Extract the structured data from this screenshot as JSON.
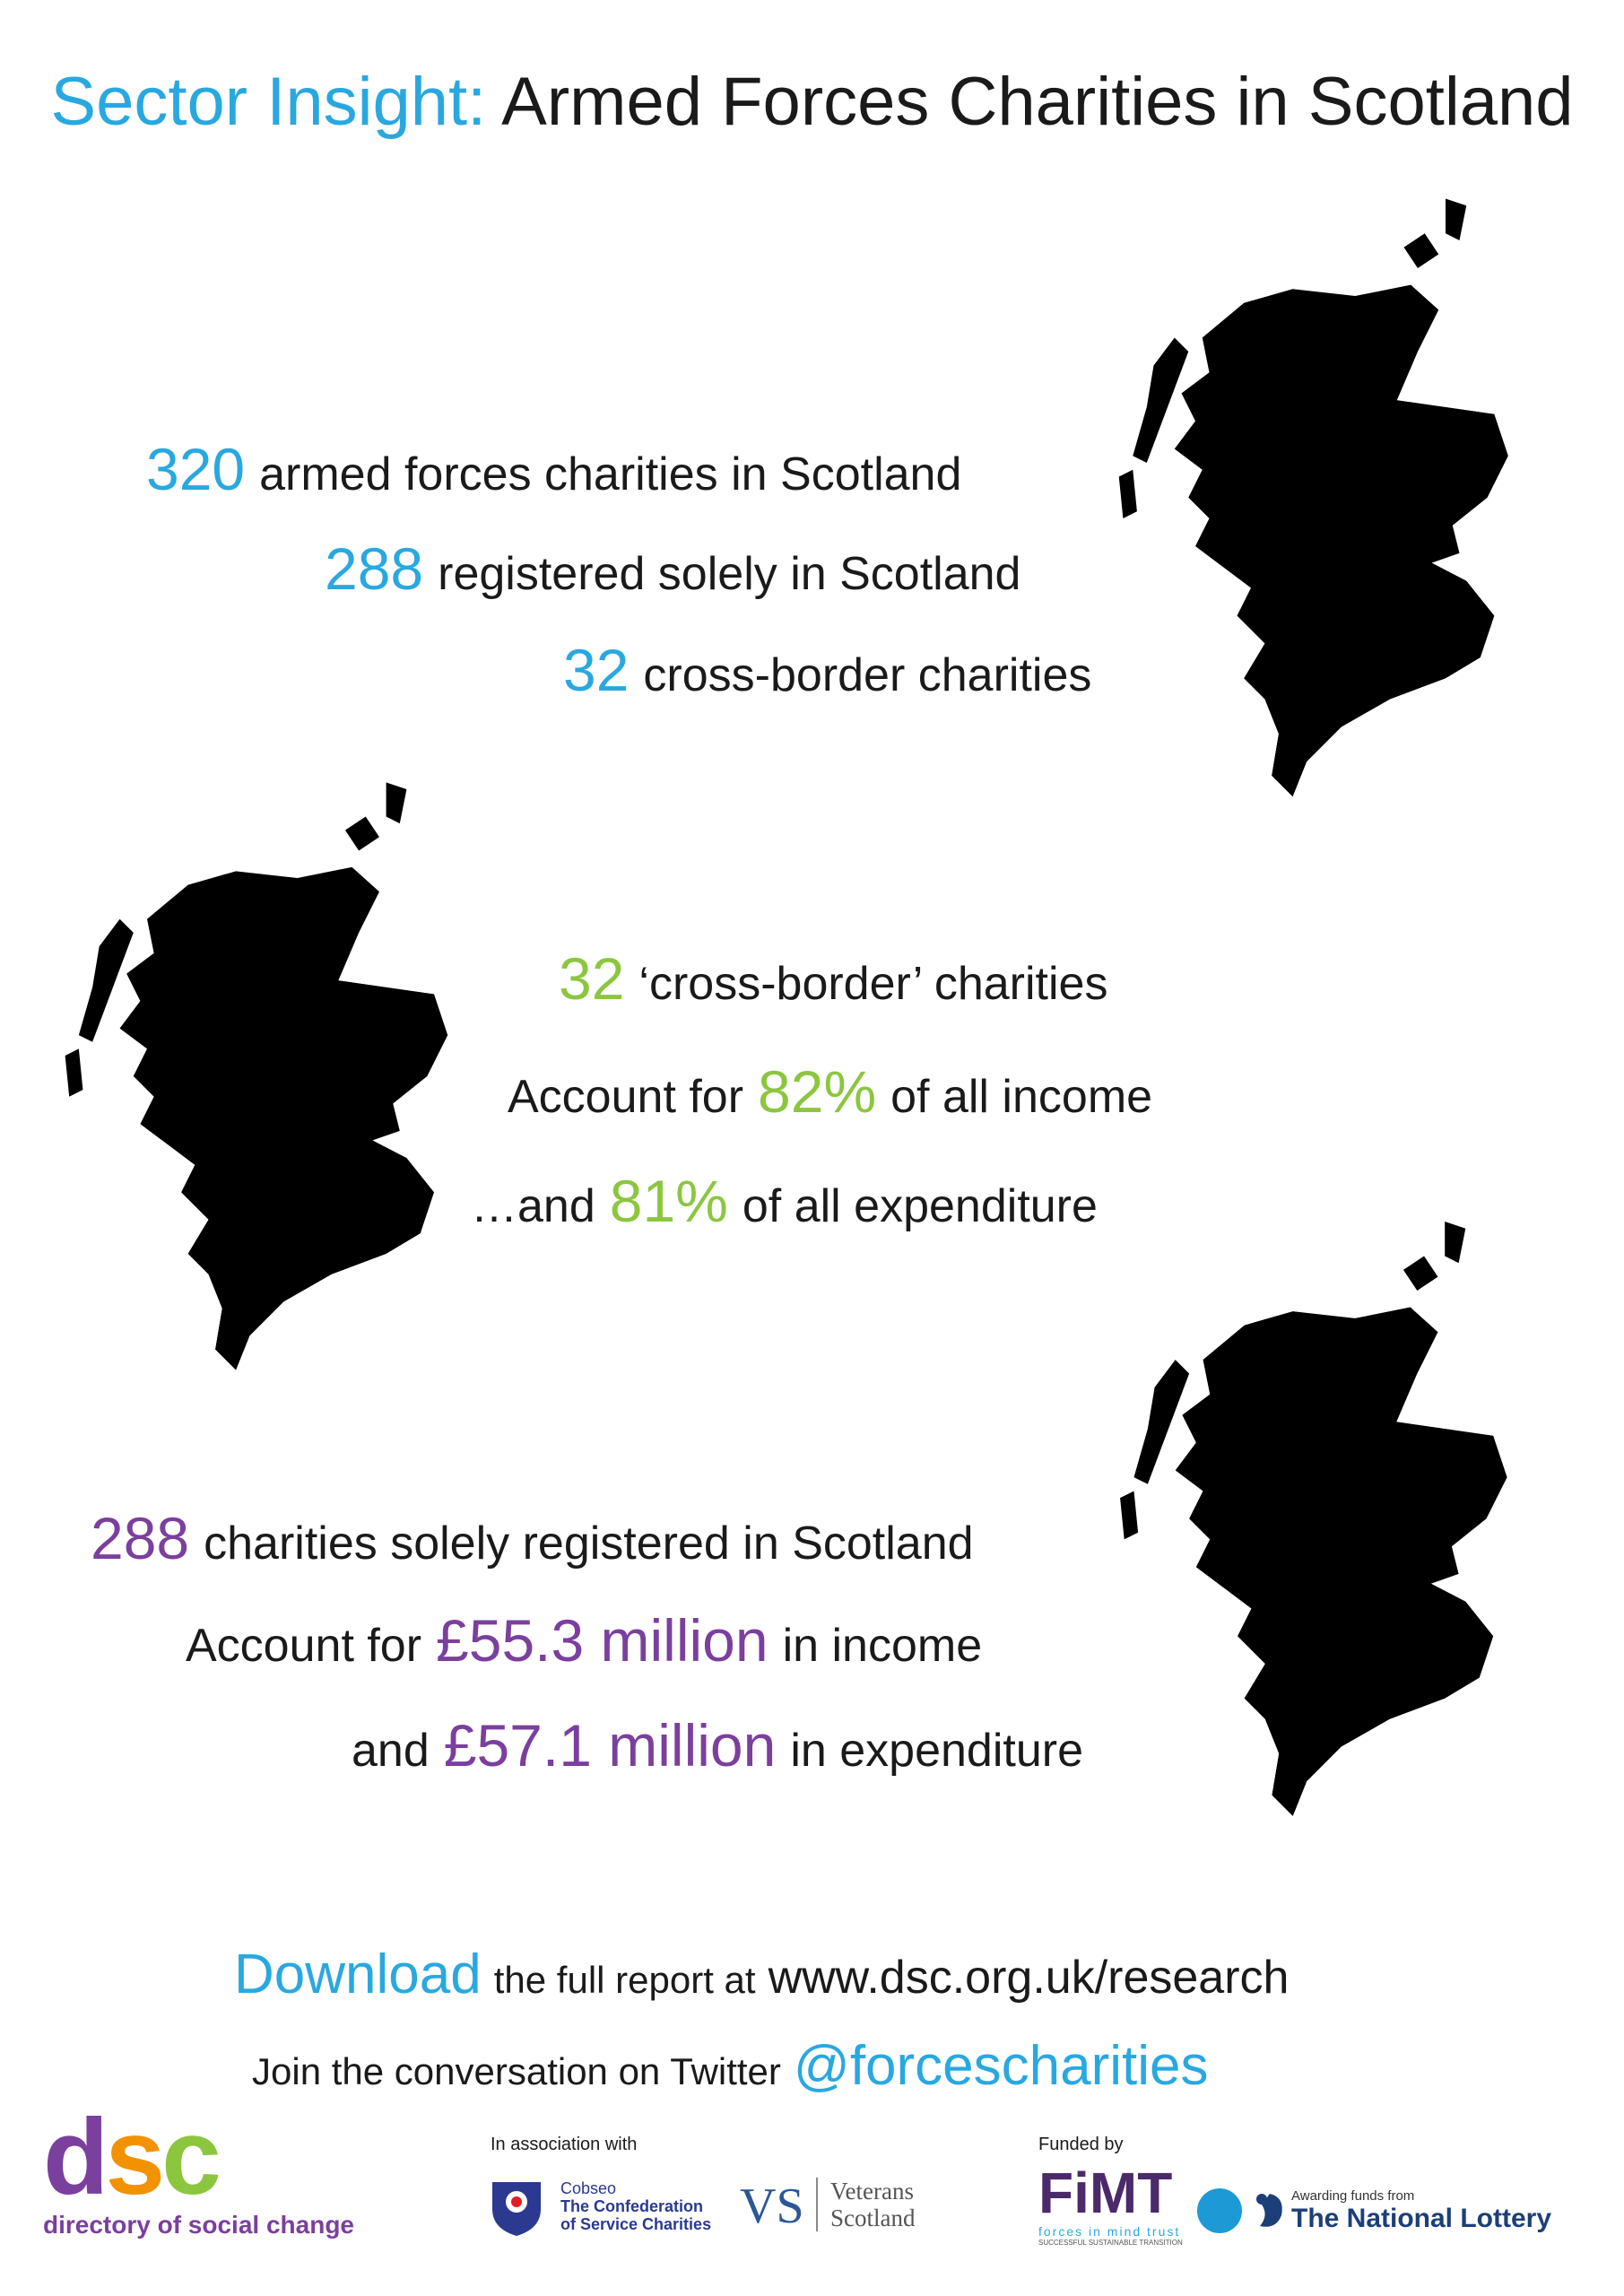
{
  "header": {
    "title_highlight": "Sector Insight:",
    "title": "Armed Forces Charities in Scotland"
  },
  "sections": [
    {
      "lines": [
        {
          "number": "320",
          "suffix": "armed forces charities in Scotland"
        },
        {
          "number": "288",
          "suffix": "registered solely in Scotland"
        },
        {
          "number": "32",
          "suffix": "cross-border charities"
        }
      ]
    },
    {
      "lines": [
        {
          "number": "32",
          "suffix": "‘cross-border’ charities"
        },
        {
          "prefix": "Account for",
          "number": "82%",
          "suffix": "of all income"
        },
        {
          "prefix": "…and",
          "number": "81%",
          "suffix": "of all expenditure"
        }
      ]
    },
    {
      "lines": [
        {
          "number": "288",
          "suffix": "charities solely registered in Scotland"
        },
        {
          "prefix": "Account for",
          "number": "£55.3 million",
          "suffix": "in income"
        },
        {
          "prefix": "and",
          "number": "£57.1 million",
          "suffix": "in expenditure"
        }
      ]
    }
  ],
  "footer": {
    "download": {
      "highlight": "Download",
      "text": "the full report at",
      "url": "www.dsc.org.uk/research"
    },
    "twitter": {
      "text": "Join the conversation on Twitter",
      "handle": "@forcescharities"
    },
    "logos": {
      "dsc": {
        "d": "d",
        "s": "s",
        "c": "c",
        "name": "directory of social change"
      },
      "association_label": "In association with",
      "cobseo": {
        "short": "Cobseo",
        "name": "The Confederation of Service Charities"
      },
      "vs": {
        "short": "VS",
        "name": "Veterans Scotland"
      },
      "funded_label": "Funded by",
      "fimt": {
        "short": "FiMT",
        "name": "forces in mind trust",
        "tagline": "SUCCESSFUL SUSTAINABLE TRANSITION"
      },
      "lottery": {
        "label": "Awarding funds from",
        "name": "The National Lottery"
      }
    }
  }
}
